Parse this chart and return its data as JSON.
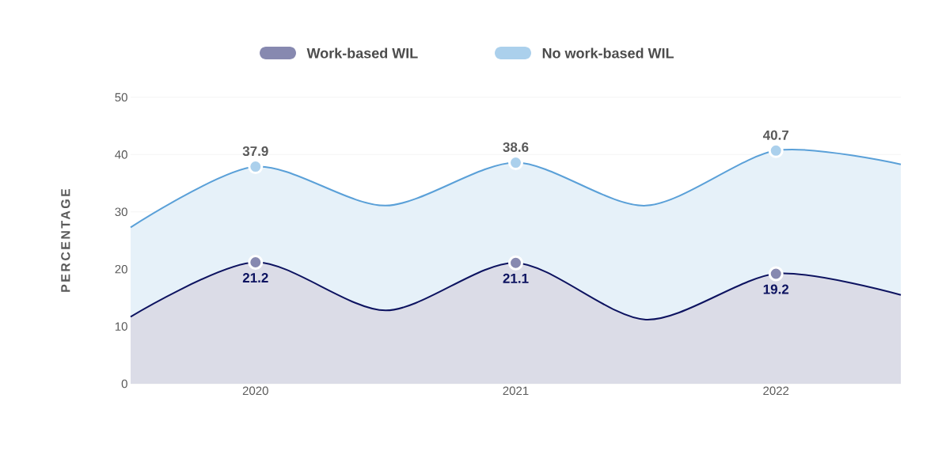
{
  "chart_data": {
    "type": "area",
    "ylabel": "PERCENTAGE",
    "x": [
      2019.52,
      2020,
      2020.5,
      2021,
      2021.5,
      2022,
      2022.48
    ],
    "xlim": [
      2019.52,
      2022.48
    ],
    "xticks": [
      2020,
      2021,
      2022
    ],
    "ylim": [
      0,
      50
    ],
    "yticks": [
      0,
      10,
      20,
      30,
      40,
      50
    ],
    "grid": "y",
    "legend": "top",
    "marker": "none",
    "series": [
      {
        "color": "#0d1360",
        "values": [
          11.7,
          21.2,
          12.8,
          21.1,
          11.2,
          19.2,
          15.5
        ]
      },
      {
        "color": "#5aa0d8",
        "values": [
          27.3,
          37.9,
          31.1,
          38.6,
          31.1,
          40.7,
          38.3
        ]
      },
      {
        "name": "Work-based WIL",
        "type": "scatter",
        "marker": "circle",
        "color": "#8789b0",
        "x": [
          2020,
          2021,
          2022
        ],
        "values": [
          21.2,
          21.1,
          19.2
        ],
        "value_labels": [
          "21.2",
          "21.1",
          "19.2"
        ]
      },
      {
        "name": "No work-based WIL",
        "type": "scatter",
        "marker": "circle",
        "color": "#abd0ec",
        "x": [
          2020,
          2021,
          2022
        ],
        "values": [
          37.9,
          38.6,
          40.7
        ],
        "value_labels": [
          "37.9",
          "38.6",
          "40.7"
        ]
      }
    ]
  }
}
